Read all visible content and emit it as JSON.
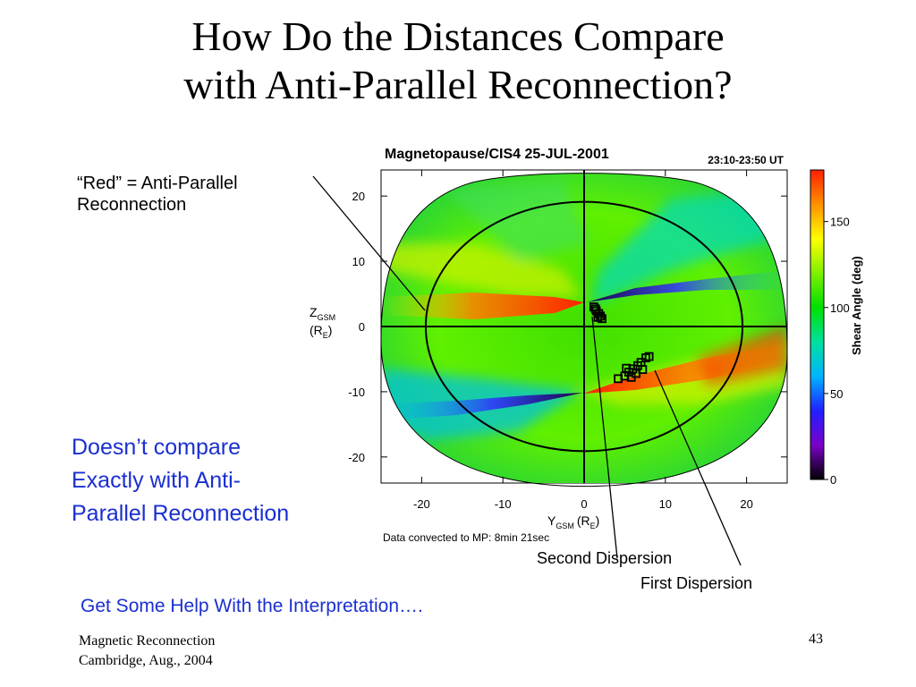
{
  "slide": {
    "title_line1": "How Do the Distances Compare",
    "title_line2": "with Anti-Parallel Reconnection?",
    "red_annotation_line1": "“Red” = Anti-Parallel",
    "red_annotation_line2": "Reconnection",
    "blue_note_line1": "Doesn’t compare",
    "blue_note_line2": "Exactly with Anti-",
    "blue_note_line3": "Parallel Reconnection",
    "second_dispersion": "Second Dispersion",
    "first_dispersion": "First Dispersion",
    "help_text": "Get Some Help With the Interpretation….",
    "footer_line1": "Magnetic Reconnection",
    "footer_line2": "Cambridge, Aug., 2004",
    "page_number": "43"
  },
  "chart_data": {
    "type": "heatmap",
    "title": "Magnetopause/CIS4 25-JUL-2001",
    "time_label": "23:10-23:50 UT",
    "xlabel_main": "Y",
    "xlabel_sub": "GSM",
    "xlabel_unit_pre": "(R",
    "xlabel_unit_sub": "E",
    "xlabel_unit_post": ")",
    "ylabel_main": "Z",
    "ylabel_sub": "GSM",
    "ylabel_unit_pre": "(R",
    "ylabel_unit_sub": "E",
    "ylabel_unit_post": ")",
    "xlim": [
      -25,
      25
    ],
    "ylim": [
      -24,
      24
    ],
    "x_ticks": [
      -20,
      -10,
      0,
      10,
      20
    ],
    "y_ticks": [
      20,
      10,
      0,
      -10,
      -20
    ],
    "footnote": "Data convected to MP: 8min 21sec",
    "colorbar": {
      "label": "Shear Angle (deg)",
      "range": [
        0,
        180
      ],
      "ticks": [
        0,
        50,
        100,
        150
      ],
      "colors": [
        "#000000",
        "#7a00c8",
        "#2020ff",
        "#00b4ff",
        "#00e0a0",
        "#00e000",
        "#80f000",
        "#ffff00",
        "#ff9000",
        "#ff2000"
      ]
    },
    "circle_radius": 19.5,
    "spacecraft_positions": {
      "second_dispersion": [
        [
          1.2,
          3.0
        ],
        [
          1.5,
          2.4
        ],
        [
          1.8,
          2.0
        ],
        [
          2.0,
          1.6
        ],
        [
          1.4,
          2.7
        ],
        [
          2.2,
          1.2
        ],
        [
          1.7,
          1.4
        ]
      ],
      "first_dispersion": [
        [
          4.2,
          -8.0
        ],
        [
          5.0,
          -7.6
        ],
        [
          5.5,
          -7.0
        ],
        [
          6.0,
          -6.5
        ],
        [
          6.6,
          -6.0
        ],
        [
          7.0,
          -5.5
        ],
        [
          7.6,
          -4.8
        ],
        [
          8.0,
          -4.6
        ],
        [
          5.8,
          -7.8
        ],
        [
          6.4,
          -7.2
        ],
        [
          5.2,
          -6.4
        ],
        [
          7.2,
          -6.6
        ]
      ]
    }
  }
}
